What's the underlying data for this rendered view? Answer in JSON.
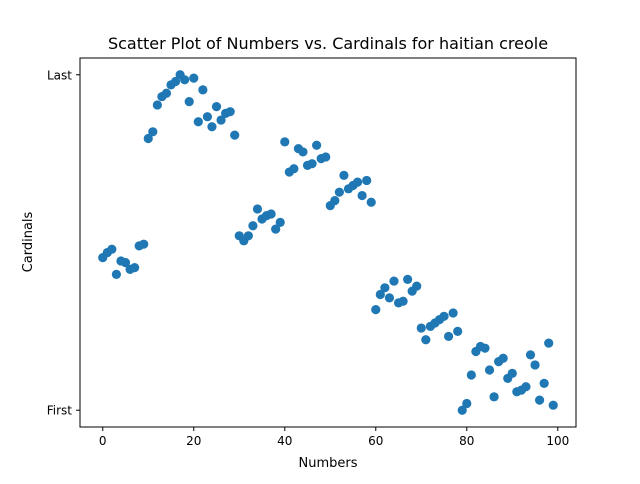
{
  "chart_data": {
    "type": "scatter",
    "title": "Scatter Plot of Numbers vs. Cardinals for haitian creole",
    "xlabel": "Numbers",
    "ylabel": "Cardinals",
    "xlim": [
      -5,
      104
    ],
    "ylim": [
      -0.05,
      1.05
    ],
    "x_ticks": [
      0,
      20,
      40,
      60,
      80,
      100
    ],
    "y_ticks": [
      {
        "value": 0,
        "label": "First"
      },
      {
        "value": 1,
        "label": "Last"
      }
    ],
    "grid": false,
    "color": "#1f77b4",
    "x": [
      0,
      1,
      2,
      3,
      4,
      5,
      6,
      7,
      8,
      9,
      10,
      11,
      12,
      13,
      14,
      15,
      16,
      17,
      18,
      19,
      20,
      21,
      22,
      23,
      24,
      25,
      26,
      27,
      28,
      29,
      30,
      31,
      32,
      33,
      34,
      35,
      36,
      37,
      38,
      39,
      40,
      41,
      42,
      43,
      44,
      45,
      46,
      47,
      48,
      49,
      50,
      51,
      52,
      53,
      54,
      55,
      56,
      57,
      58,
      59,
      60,
      61,
      62,
      63,
      64,
      65,
      66,
      67,
      68,
      69,
      70,
      71,
      72,
      73,
      74,
      75,
      76,
      77,
      78,
      79,
      80,
      81,
      82,
      83,
      84,
      85,
      86,
      87,
      88,
      89,
      90,
      91,
      92,
      93,
      94,
      95,
      96,
      97,
      98,
      99
    ],
    "y": [
      0.455,
      0.47,
      0.48,
      0.405,
      0.445,
      0.44,
      0.42,
      0.425,
      0.49,
      0.495,
      0.81,
      0.83,
      0.91,
      0.935,
      0.945,
      0.97,
      0.98,
      1.0,
      0.985,
      0.92,
      0.99,
      0.86,
      0.955,
      0.875,
      0.845,
      0.905,
      0.865,
      0.885,
      0.89,
      0.82,
      0.52,
      0.505,
      0.52,
      0.55,
      0.6,
      0.57,
      0.58,
      0.585,
      0.54,
      0.56,
      0.8,
      0.71,
      0.72,
      0.78,
      0.77,
      0.73,
      0.735,
      0.79,
      0.75,
      0.755,
      0.61,
      0.625,
      0.65,
      0.7,
      0.66,
      0.67,
      0.68,
      0.64,
      0.685,
      0.62,
      0.3,
      0.345,
      0.365,
      0.335,
      0.385,
      0.32,
      0.325,
      0.39,
      0.355,
      0.37,
      0.245,
      0.21,
      0.25,
      0.26,
      0.27,
      0.28,
      0.22,
      0.29,
      0.235,
      0.0,
      0.02,
      0.105,
      0.175,
      0.19,
      0.185,
      0.12,
      0.04,
      0.145,
      0.155,
      0.095,
      0.11,
      0.055,
      0.06,
      0.07,
      0.165,
      0.135,
      0.03,
      0.08,
      0.2,
      0.015
    ]
  }
}
